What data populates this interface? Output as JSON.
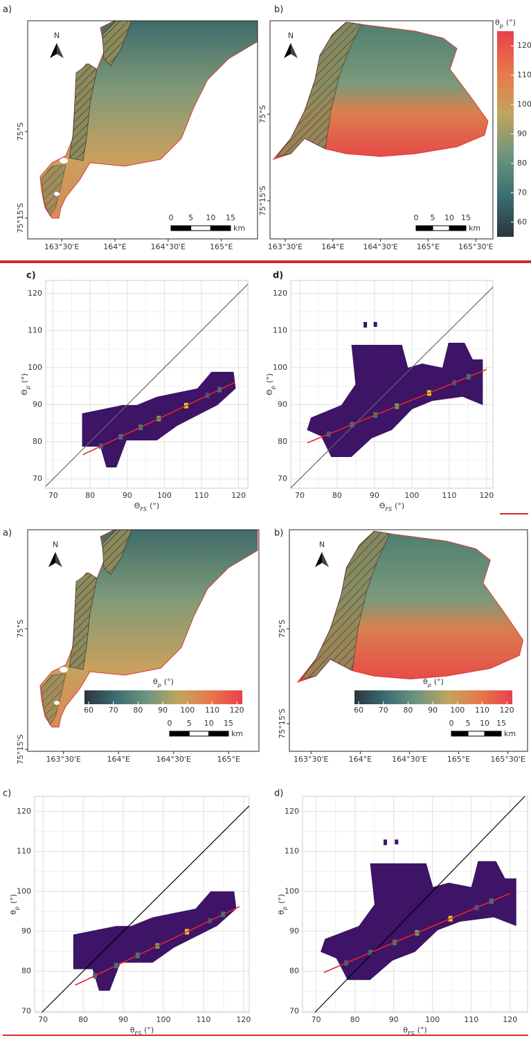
{
  "chart_data": [
    {
      "type": "map",
      "panel": "a)",
      "north": "N",
      "xlim": [
        163.18,
        165.34
      ],
      "ylim": [
        -75.31,
        -74.68
      ],
      "xticks": [
        {
          "value": 163.5,
          "label": "163°30'E"
        },
        {
          "value": 164,
          "label": "164°E"
        },
        {
          "value": 164.5,
          "label": "164°30'E"
        },
        {
          "value": 165,
          "label": "165°E"
        }
      ],
      "yticks": [
        {
          "value": -75,
          "label": "75°S"
        },
        {
          "value": -75.25,
          "label": "75°15'S"
        }
      ],
      "scalebar": {
        "ticks": [
          0,
          5,
          10,
          15
        ],
        "unit": "km"
      }
    },
    {
      "type": "map",
      "panel": "b)",
      "north": "N",
      "xlim": [
        163.34,
        165.68
      ],
      "ylim": [
        -75.36,
        -74.73
      ],
      "xticks": [
        {
          "value": 163.5,
          "label": "163°30'E"
        },
        {
          "value": 164,
          "label": "164°E"
        },
        {
          "value": 164.5,
          "label": "164°30'E"
        },
        {
          "value": 165,
          "label": "165°E"
        },
        {
          "value": 165.5,
          "label": "165°30'E"
        }
      ],
      "yticks": [
        {
          "value": -75,
          "label": "75°S"
        },
        {
          "value": -75.25,
          "label": "75°15'S"
        }
      ],
      "scalebar": {
        "ticks": [
          0,
          5,
          10,
          15
        ],
        "unit": "km"
      },
      "colorbar": {
        "label": {
          "symbol": "θ",
          "sub": "p",
          "unit": "(°)"
        },
        "lim": [
          55,
          125
        ],
        "ticks": [
          60,
          70,
          80,
          90,
          100,
          110,
          120
        ],
        "orientation": "vertical",
        "colors": [
          "#2a3540",
          "#3b6e72",
          "#6f9580",
          "#c2a55c",
          "#e9774a",
          "#e8404c"
        ]
      }
    },
    {
      "type": "density",
      "panel": "c)",
      "xlabel": {
        "symbol": "Θ",
        "sub": "FS",
        "unit": "(°)"
      },
      "ylabel": {
        "symbol": "Θ",
        "sub": "p",
        "unit": "(°)"
      },
      "xlim": [
        68,
        122.5
      ],
      "ylim": [
        67.5,
        123.5
      ],
      "xticks": [
        70,
        80,
        90,
        100,
        110,
        120
      ],
      "yticks": [
        70,
        80,
        90,
        100,
        110,
        120
      ],
      "grid": true,
      "identity_color": "#666666",
      "fit": {
        "x": [
          78,
          119
        ],
        "y": [
          76.5,
          96
        ],
        "color": "#e8252b"
      }
    },
    {
      "type": "density",
      "panel": "d)",
      "xlabel": {
        "symbol": "Θ",
        "sub": "FS",
        "unit": "(°)"
      },
      "ylabel": {
        "symbol": "Θ",
        "sub": "p",
        "unit": "(°)"
      },
      "xlim": [
        67.6,
        121.7
      ],
      "ylim": [
        67.5,
        123.5
      ],
      "xticks": [
        70,
        80,
        90,
        100,
        110,
        120
      ],
      "yticks": [
        70,
        80,
        90,
        100,
        110,
        120
      ],
      "grid": true,
      "identity_color": "#666666",
      "fit": {
        "x": [
          72,
          120
        ],
        "y": [
          79.7,
          99.5
        ],
        "color": "#e8252b"
      }
    },
    {
      "type": "map",
      "panel": "a)",
      "north": "N",
      "xlim": [
        163.175,
        165.275
      ],
      "ylim": [
        -75.254,
        -74.795
      ],
      "xticks": [
        {
          "value": 163.5,
          "label": "163°30'E"
        },
        {
          "value": 164,
          "label": "164°E"
        },
        {
          "value": 164.5,
          "label": "164°30'E"
        },
        {
          "value": 165,
          "label": "165°E"
        }
      ],
      "yticks": [
        {
          "value": -75,
          "label": "75°S"
        },
        {
          "value": -75.25,
          "label": "75°15'S"
        }
      ],
      "scalebar": {
        "ticks": [
          0,
          5,
          10,
          15
        ],
        "unit": "km"
      },
      "colorbar": {
        "label": {
          "symbol": "θ",
          "sub": "p",
          "unit": "(°)"
        },
        "lim": [
          58.3,
          122.2
        ],
        "ticks": [
          60,
          70,
          80,
          90,
          100,
          110,
          120
        ],
        "orientation": "horizontal",
        "colors": [
          "#2a3540",
          "#3b6e72",
          "#6f9580",
          "#c2a55c",
          "#e9774a",
          "#e8404c"
        ]
      }
    },
    {
      "type": "map",
      "panel": "b)",
      "north": "N",
      "xlim": [
        163.28,
        165.7
      ],
      "ylim": [
        -75.323,
        -74.739
      ],
      "xticks": [
        {
          "value": 163.5,
          "label": "163°30'E"
        },
        {
          "value": 164,
          "label": "164°E"
        },
        {
          "value": 164.5,
          "label": "164°30'E"
        },
        {
          "value": 165,
          "label": "165°E"
        },
        {
          "value": 165.5,
          "label": "165°30'E"
        }
      ],
      "yticks": [
        {
          "value": -75,
          "label": "75°S"
        },
        {
          "value": -75.25,
          "label": "75°15'S"
        }
      ],
      "scalebar": {
        "ticks": [
          0,
          5,
          10,
          15
        ],
        "unit": "km"
      },
      "colorbar": {
        "label": {
          "symbol": "θ",
          "sub": "p",
          "unit": "(°)"
        },
        "lim": [
          58.3,
          122.2
        ],
        "ticks": [
          60,
          70,
          80,
          90,
          100,
          110,
          120
        ],
        "orientation": "horizontal",
        "colors": [
          "#2a3540",
          "#3b6e72",
          "#6f9580",
          "#c2a55c",
          "#e9774a",
          "#e8404c"
        ]
      }
    },
    {
      "type": "density",
      "panel": "c)",
      "xlabel": {
        "symbol": "θ",
        "sub": "FS",
        "unit": "(°)"
      },
      "ylabel": {
        "symbol": "θ",
        "sub": "p",
        "unit": "(°)"
      },
      "xlim": [
        67.9,
        121.4
      ],
      "ylim": [
        69.7,
        123.8
      ],
      "xticks": [
        70,
        80,
        90,
        100,
        110,
        120
      ],
      "yticks": [
        70,
        80,
        90,
        100,
        110,
        120
      ],
      "grid": true,
      "identity_color": "#000000",
      "fit": {
        "x": [
          78,
          119
        ],
        "y": [
          76.5,
          96.2
        ],
        "color": "#e8252b"
      }
    },
    {
      "type": "density",
      "panel": "d)",
      "xlabel": {
        "symbol": "θ",
        "sub": "FS",
        "unit": "(°)"
      },
      "ylabel": {
        "symbol": "θ",
        "sub": "p",
        "unit": "(°)"
      },
      "xlim": [
        66.5,
        124.5
      ],
      "ylim": [
        69.7,
        123.8
      ],
      "xticks": [
        70,
        80,
        90,
        100,
        110,
        120
      ],
      "yticks": [
        70,
        80,
        90,
        100,
        110,
        120
      ],
      "grid": true,
      "identity_color": "#000000",
      "fit": {
        "x": [
          72,
          120
        ],
        "y": [
          79.7,
          99.5
        ],
        "color": "#e8252b"
      }
    }
  ]
}
